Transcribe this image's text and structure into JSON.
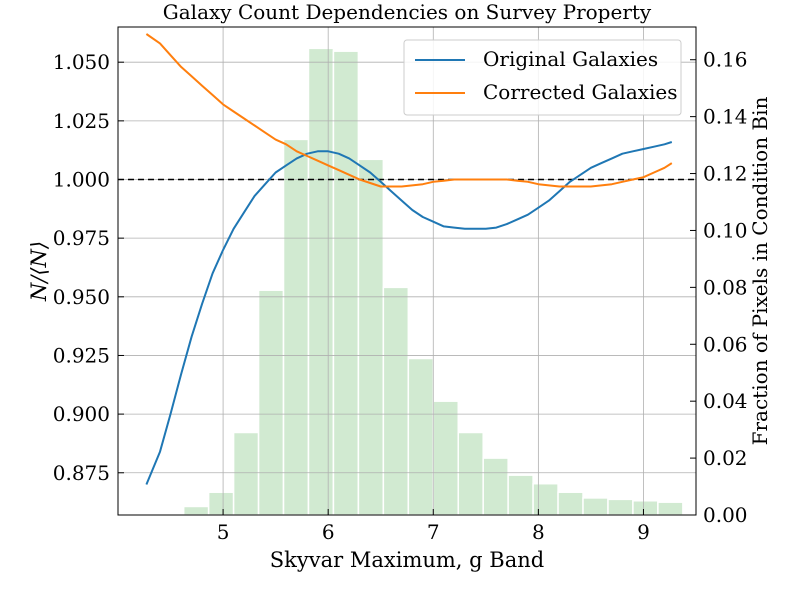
{
  "chart_data": {
    "type": "line",
    "title": "Galaxy Count Dependencies on Survey Property",
    "xlabel": "Skyvar Maximum, g Band",
    "ylabel_left": "N/⟨N⟩",
    "ylabel_right": "Fraction of Pixels in Condition Bin",
    "xlim": [
      4.0,
      9.5
    ],
    "ylim_left": [
      0.857,
      1.065
    ],
    "ylim_right": [
      0.0,
      0.1715
    ],
    "x_ticks": [
      5,
      6,
      7,
      8,
      9
    ],
    "y_left_ticks": [
      "0.875",
      "0.900",
      "0.925",
      "0.950",
      "0.975",
      "1.000",
      "1.025",
      "1.050"
    ],
    "y_right_ticks": [
      "0.00",
      "0.02",
      "0.04",
      "0.06",
      "0.08",
      "0.10",
      "0.12",
      "0.14",
      "0.16"
    ],
    "grid": true,
    "legend_position": "top-right",
    "reference_line": 1.0,
    "series": [
      {
        "name": "Original Galaxies",
        "color": "#1f77b4",
        "x": [
          4.27,
          4.4,
          4.5,
          4.6,
          4.7,
          4.8,
          4.9,
          5.0,
          5.1,
          5.2,
          5.3,
          5.4,
          5.5,
          5.6,
          5.7,
          5.8,
          5.9,
          6.0,
          6.1,
          6.2,
          6.3,
          6.4,
          6.5,
          6.6,
          6.7,
          6.8,
          6.9,
          7.0,
          7.1,
          7.2,
          7.3,
          7.4,
          7.5,
          7.6,
          7.7,
          7.8,
          7.9,
          8.0,
          8.1,
          8.2,
          8.3,
          8.4,
          8.5,
          8.6,
          8.7,
          8.8,
          8.9,
          9.0,
          9.1,
          9.2,
          9.27
        ],
        "values": [
          0.87,
          0.884,
          0.9,
          0.917,
          0.933,
          0.947,
          0.96,
          0.97,
          0.979,
          0.986,
          0.993,
          0.998,
          1.003,
          1.006,
          1.009,
          1.011,
          1.012,
          1.012,
          1.011,
          1.009,
          1.006,
          1.003,
          0.999,
          0.995,
          0.991,
          0.987,
          0.984,
          0.982,
          0.98,
          0.9795,
          0.979,
          0.979,
          0.979,
          0.9795,
          0.981,
          0.983,
          0.985,
          0.988,
          0.991,
          0.995,
          0.999,
          1.002,
          1.005,
          1.007,
          1.009,
          1.011,
          1.012,
          1.013,
          1.014,
          1.015,
          1.016
        ]
      },
      {
        "name": "Corrected Galaxies",
        "color": "#ff7f0e",
        "x": [
          4.27,
          4.4,
          4.5,
          4.6,
          4.7,
          4.8,
          4.9,
          5.0,
          5.1,
          5.2,
          5.3,
          5.4,
          5.5,
          5.6,
          5.7,
          5.8,
          5.9,
          6.0,
          6.1,
          6.2,
          6.3,
          6.4,
          6.5,
          6.6,
          6.7,
          6.8,
          6.9,
          7.0,
          7.1,
          7.2,
          7.3,
          7.4,
          7.5,
          7.6,
          7.7,
          7.8,
          7.9,
          8.0,
          8.1,
          8.2,
          8.3,
          8.4,
          8.5,
          8.6,
          8.7,
          8.8,
          8.9,
          9.0,
          9.1,
          9.2,
          9.27
        ],
        "values": [
          1.062,
          1.058,
          1.053,
          1.048,
          1.044,
          1.04,
          1.036,
          1.032,
          1.029,
          1.026,
          1.023,
          1.02,
          1.017,
          1.015,
          1.012,
          1.01,
          1.008,
          1.006,
          1.004,
          1.002,
          1.0,
          0.9985,
          0.997,
          0.997,
          0.997,
          0.9975,
          0.998,
          0.999,
          0.9995,
          1.0,
          1.0,
          1.0,
          1.0,
          1.0,
          1.0,
          0.9995,
          0.999,
          0.998,
          0.9975,
          0.997,
          0.997,
          0.997,
          0.997,
          0.9975,
          0.998,
          0.999,
          1.0,
          1.001,
          1.003,
          1.005,
          1.007
        ]
      }
    ],
    "histogram": {
      "color": "#2ca02c",
      "opacity": 0.22,
      "bin_width": 0.2375,
      "bin_starts": [
        4.15,
        4.3875,
        4.625,
        4.8625,
        5.1,
        5.3375,
        5.575,
        5.8125,
        6.05,
        6.2875,
        6.525,
        6.7625,
        7.0,
        7.2375,
        7.475,
        7.7125,
        7.95,
        8.1875,
        8.425,
        8.6625,
        8.9,
        9.1375
      ],
      "values": [
        0.0,
        0.0,
        0.003,
        0.008,
        0.029,
        0.079,
        0.132,
        0.164,
        0.163,
        0.125,
        0.08,
        0.055,
        0.04,
        0.029,
        0.02,
        0.014,
        0.011,
        0.008,
        0.006,
        0.0055,
        0.005,
        0.0045
      ]
    }
  }
}
